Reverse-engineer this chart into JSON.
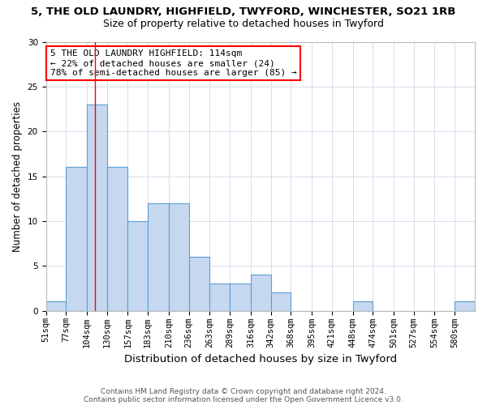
{
  "title1": "5, THE OLD LAUNDRY, HIGHFIELD, TWYFORD, WINCHESTER, SO21 1RB",
  "title2": "Size of property relative to detached houses in Twyford",
  "xlabel": "Distribution of detached houses by size in Twyford",
  "ylabel": "Number of detached properties",
  "footnote1": "Contains HM Land Registry data © Crown copyright and database right 2024.",
  "footnote2": "Contains public sector information licensed under the Open Government Licence v3.0.",
  "bin_labels": [
    "51sqm",
    "77sqm",
    "104sqm",
    "130sqm",
    "157sqm",
    "183sqm",
    "210sqm",
    "236sqm",
    "263sqm",
    "289sqm",
    "316sqm",
    "342sqm",
    "368sqm",
    "395sqm",
    "421sqm",
    "448sqm",
    "474sqm",
    "501sqm",
    "527sqm",
    "554sqm",
    "580sqm"
  ],
  "bar_values": [
    1,
    16,
    23,
    16,
    10,
    12,
    12,
    6,
    3,
    3,
    4,
    2,
    0,
    0,
    0,
    1,
    0,
    0,
    0,
    0,
    1
  ],
  "bar_color": "#c5d8f0",
  "bar_edge_color": "#5a9fd4",
  "red_line_x": 114,
  "ylim": [
    0,
    30
  ],
  "yticks": [
    0,
    5,
    10,
    15,
    20,
    25,
    30
  ],
  "annotation_text": "5 THE OLD LAUNDRY HIGHFIELD: 114sqm\n← 22% of detached houses are smaller (24)\n78% of semi-detached houses are larger (85) →",
  "annotation_box_color": "white",
  "annotation_box_edge": "red",
  "title1_fontsize": 9.5,
  "title2_fontsize": 9,
  "xlabel_fontsize": 9.5,
  "ylabel_fontsize": 8.5,
  "annotation_fontsize": 8,
  "tick_fontsize": 7.5
}
